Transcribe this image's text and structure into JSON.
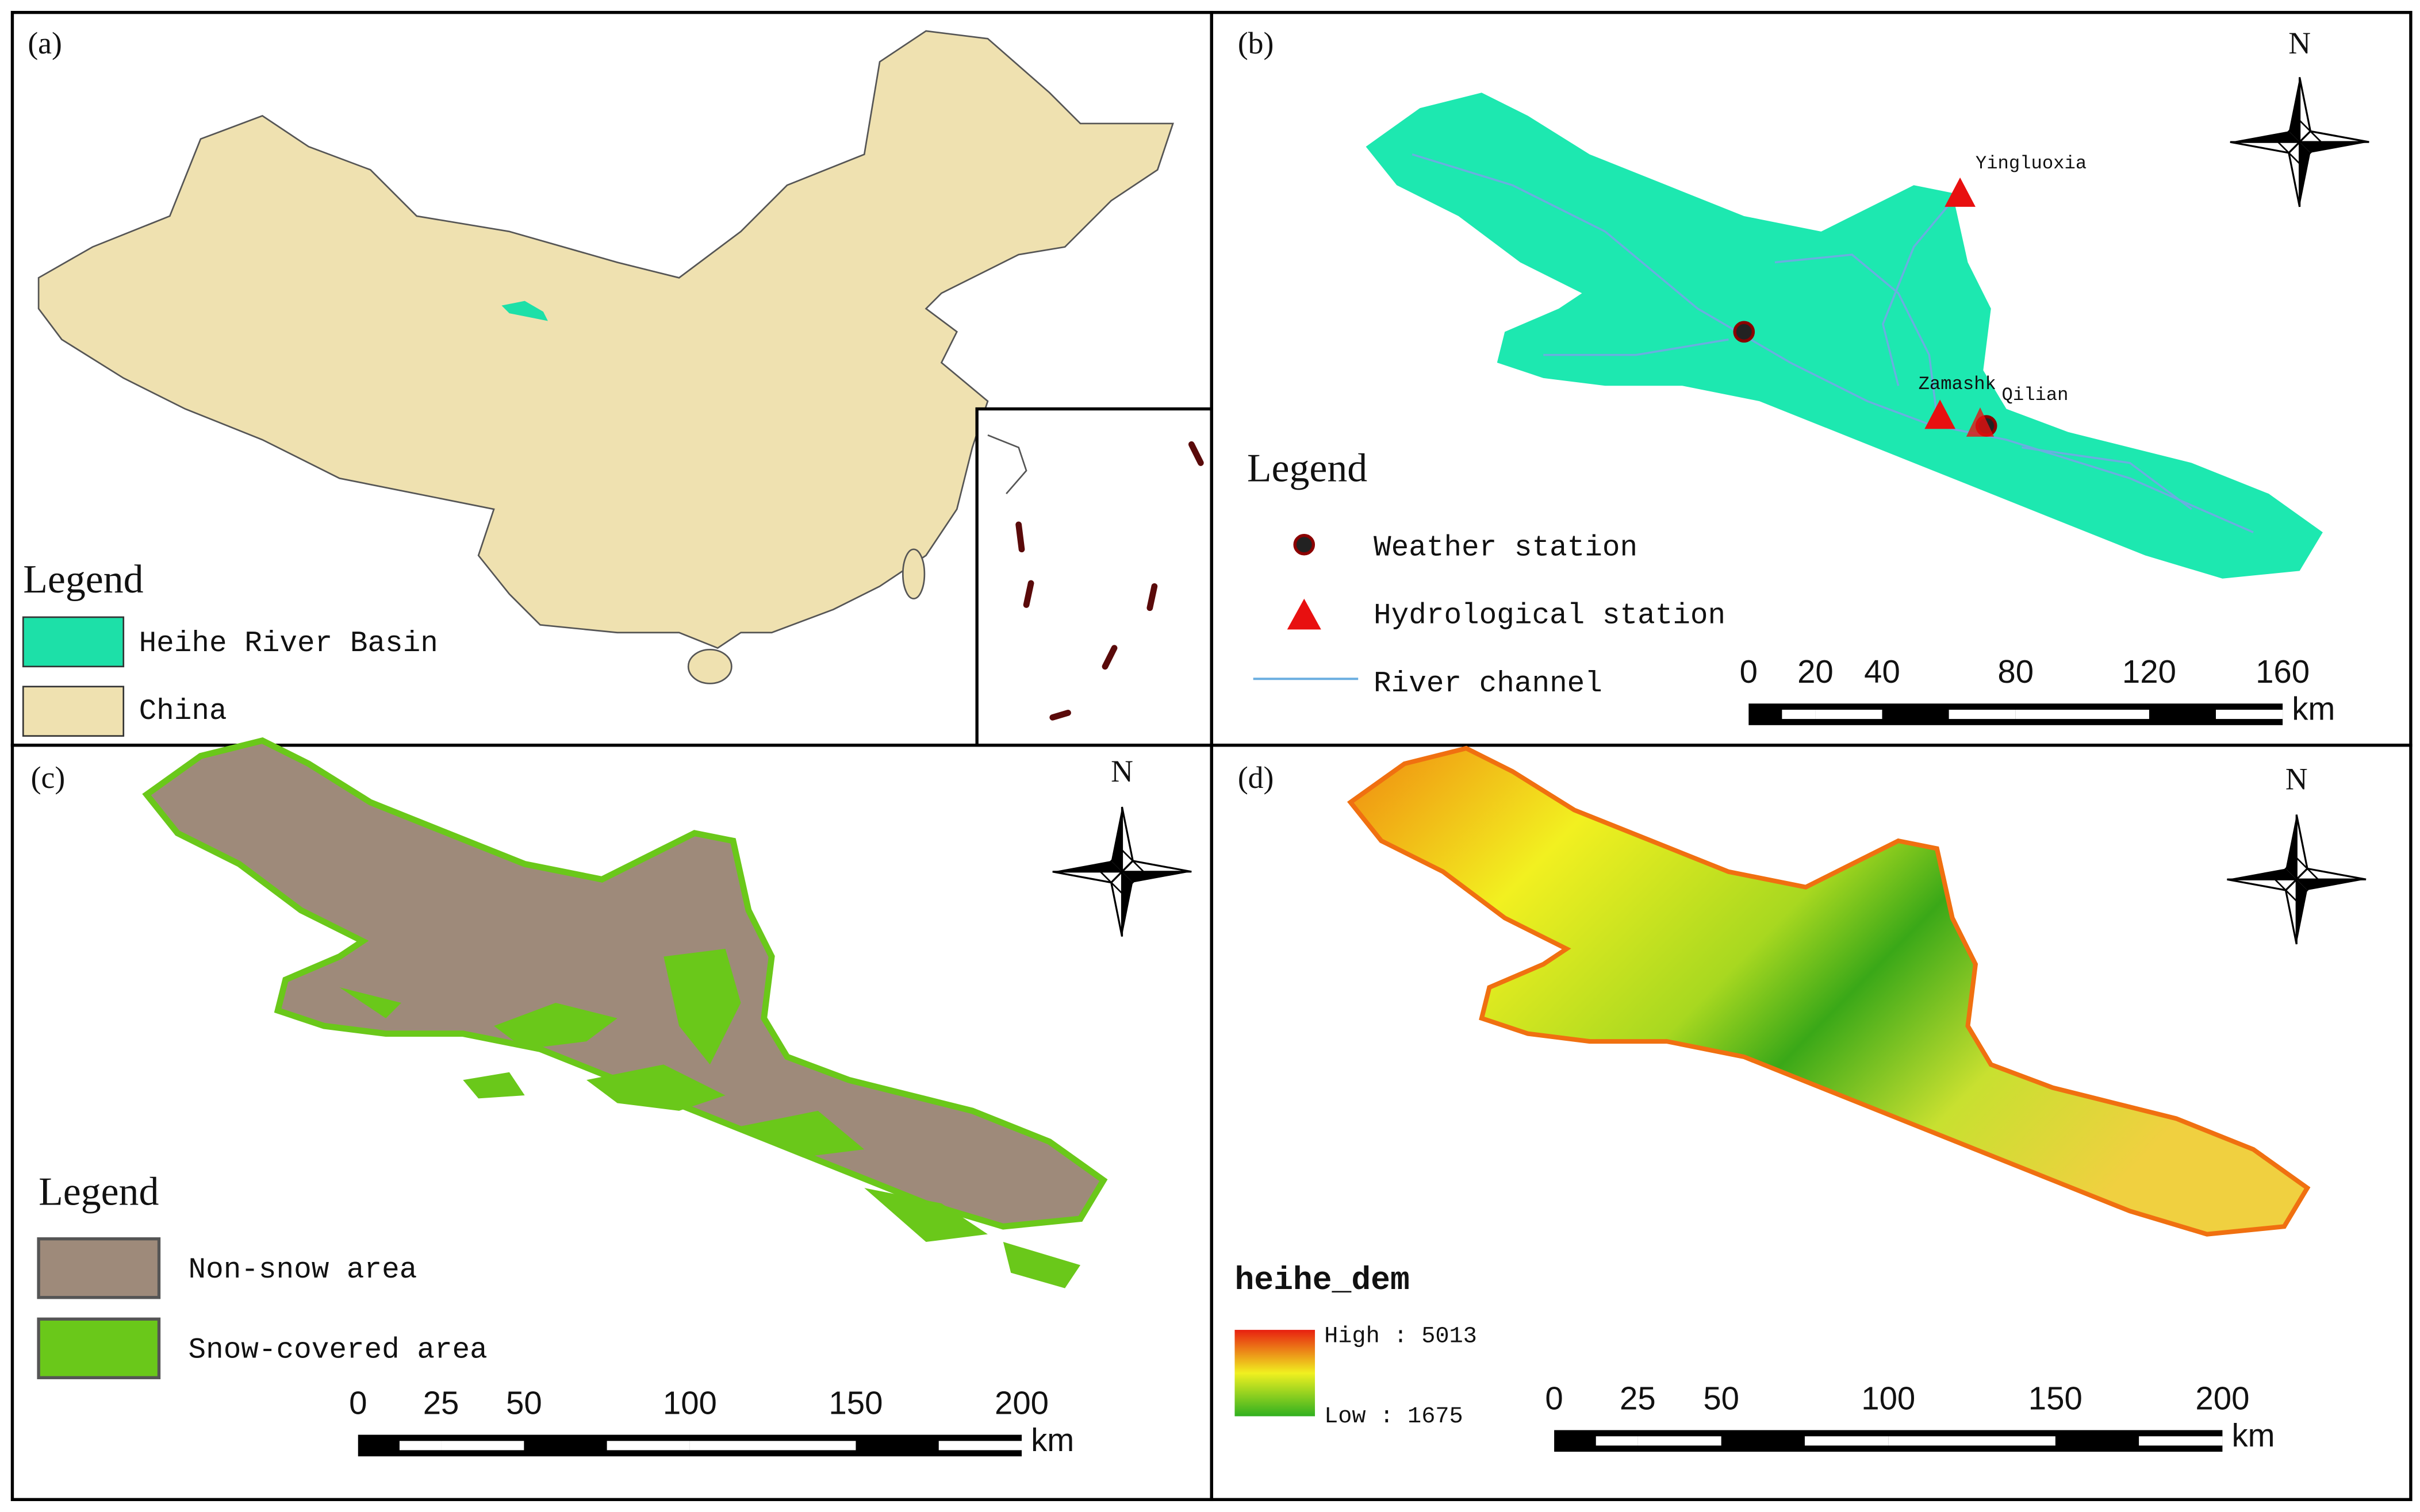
{
  "panels": [
    {
      "label": "(a)",
      "legend_title": "Legend",
      "legend": [
        "Heihe River Basin",
        "China"
      ]
    },
    {
      "label": "(b)",
      "north": "N",
      "stations": [
        "Yingluoxia",
        "Zamashk",
        "Qilian"
      ],
      "legend_title": "Legend",
      "legend": [
        "Weather station",
        "Hydrological station",
        "River channel"
      ],
      "scale_ticks": [
        0,
        20,
        40,
        80,
        120,
        160
      ],
      "scale_unit": "km"
    },
    {
      "label": "(c)",
      "north": "N",
      "legend_title": "Legend",
      "legend": [
        "Non-snow area",
        "Snow-covered area"
      ],
      "scale_ticks": [
        0,
        25,
        50,
        100,
        150,
        200
      ],
      "scale_unit": "km"
    },
    {
      "label": "(d)",
      "north": "N",
      "legend_title": "heihe_dem",
      "legend": [
        "High : 5013",
        "Low : 1675"
      ],
      "scale_ticks": [
        0,
        25,
        50,
        100,
        150,
        200
      ],
      "scale_unit": "km"
    }
  ]
}
